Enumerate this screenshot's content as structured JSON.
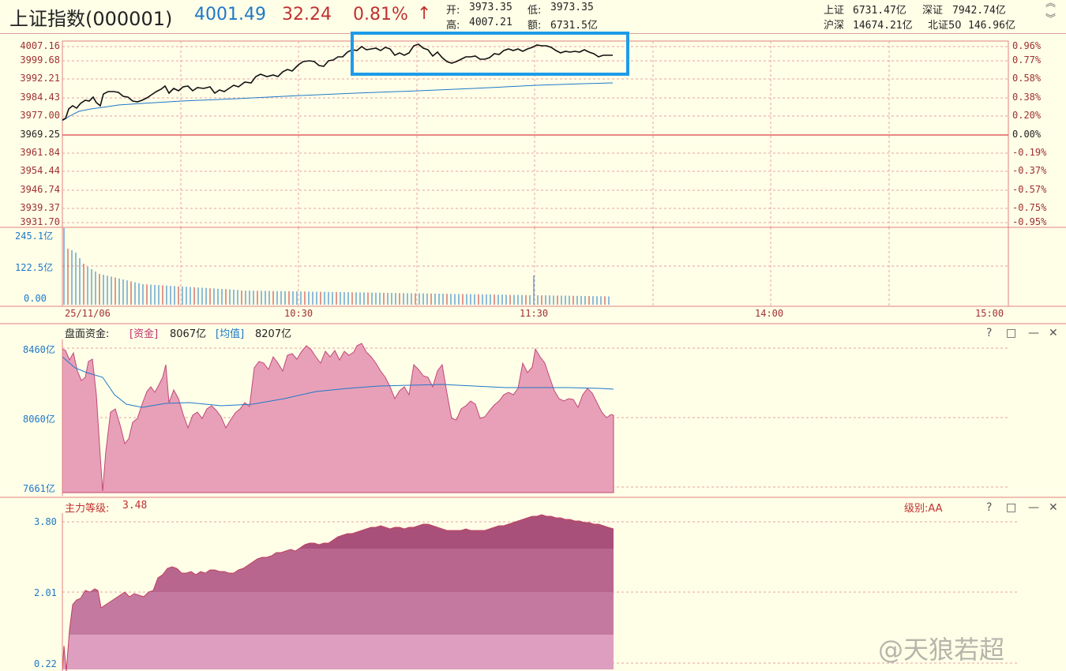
{
  "header": {
    "index_name": "上证指数(000001)",
    "price": "4001.49",
    "change": "32.24",
    "change_pct": "0.81%",
    "arrow": "↑",
    "open_label": "开:",
    "open_value": "3973.35",
    "low_label": "低:",
    "low_value": "3973.35",
    "high_label": "高:",
    "high_value": "4007.21",
    "amount_label": "额:",
    "amount_value": "6731.5亿",
    "sh_label": "上证",
    "sh_value": "6731.47亿",
    "sz_label": "深证",
    "sz_value": "7942.74亿",
    "hs_label": "沪深",
    "hs_value": "14674.21亿",
    "bz_label": "北证50",
    "bz_value": "146.96亿"
  },
  "price_axis": {
    "left": [
      "4007.16",
      "3999.68",
      "3992.21",
      "3984.43",
      "3977.00",
      "3969.25",
      "3961.84",
      "3954.44",
      "3946.74",
      "3939.37",
      "3931.70"
    ],
    "right": [
      "0.96%",
      "0.77%",
      "0.58%",
      "0.38%",
      "0.20%",
      "0.00%",
      "-0.19%",
      "-0.37%",
      "-0.57%",
      "-0.75%",
      "-0.95%"
    ]
  },
  "volume_axis": [
    "245.1亿",
    "122.5亿",
    "0.00"
  ],
  "time_axis": {
    "date": "25/11/06",
    "t1": "10:30",
    "t2": "11:30",
    "t3": "14:00",
    "t4": "15:00"
  },
  "panel2": {
    "title": "盘面资金:",
    "fund_label": "[资金]",
    "fund_value": "8067亿",
    "avg_label": "[均值]",
    "avg_value": "8207亿",
    "y": [
      "8460亿",
      "8060亿",
      "7661亿"
    ]
  },
  "panel3": {
    "title": "主力等级:",
    "value": "3.48",
    "level": "级别:AA",
    "y": [
      "3.80",
      "2.01",
      "0.22"
    ]
  },
  "panel_buttons": {
    "help": "?",
    "max": "□",
    "min": "—",
    "close": "✕"
  },
  "watermark": "@天狼若超",
  "colors": {
    "up": "#c03030",
    "price_blue": "#1e78c8",
    "fund_fill": "#e8a0b8",
    "grid": "#e08080",
    "highlight": "#1e9be8"
  }
}
